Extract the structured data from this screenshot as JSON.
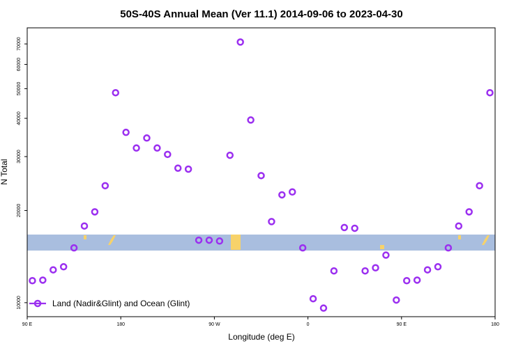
{
  "chart_data": {
    "type": "scatter",
    "title": "50S-40S Annual Mean (Ver 11.1)   2014-09-06 to 2023-04-30",
    "xlabel": "Longitude (deg E)",
    "ylabel": "N Total",
    "x_tick_labels": [
      "90 E",
      "180",
      "90 W",
      "0",
      "90 E",
      "180"
    ],
    "x_tick_values": [
      90,
      180,
      270,
      360,
      450,
      540
    ],
    "xlim": [
      90,
      540
    ],
    "y_ticks": [
      10000,
      20000,
      30000,
      40000,
      50000,
      60000,
      70000
    ],
    "ylim": [
      9000,
      79000
    ],
    "y_scale": "log",
    "grid": false,
    "legend_position": "bottom-left",
    "series": [
      {
        "name": "Land (Nadir&Glint) and Ocean (Glint)",
        "color": "#9b2ff0",
        "marker": "open-circle",
        "x": [
          95,
          105,
          115,
          125,
          135,
          145,
          155,
          165,
          175,
          185,
          195,
          205,
          215,
          225,
          235,
          245,
          255,
          265,
          275,
          285,
          295,
          305,
          315,
          325,
          335,
          345,
          355,
          365,
          375,
          385,
          395,
          405,
          415,
          425,
          435,
          445,
          455,
          465,
          475,
          485,
          495,
          505,
          515,
          525,
          535
        ],
        "y": [
          11800,
          11850,
          12800,
          13100,
          15100,
          17800,
          19800,
          24100,
          48500,
          36000,
          32000,
          34500,
          32000,
          30500,
          27500,
          27300,
          16000,
          16000,
          15900,
          30300,
          71000,
          39500,
          26000,
          18400,
          22500,
          23000,
          15100,
          10300,
          9600,
          12700,
          17600,
          17500,
          12700,
          13000,
          14300,
          10200,
          11800,
          11850,
          12800,
          13100,
          15100,
          17800,
          19800,
          24100,
          48500
        ]
      }
    ],
    "band": {
      "name": "land mask overlay",
      "color": "#a9bedf",
      "highlight_color": "#f7d26a"
    }
  }
}
